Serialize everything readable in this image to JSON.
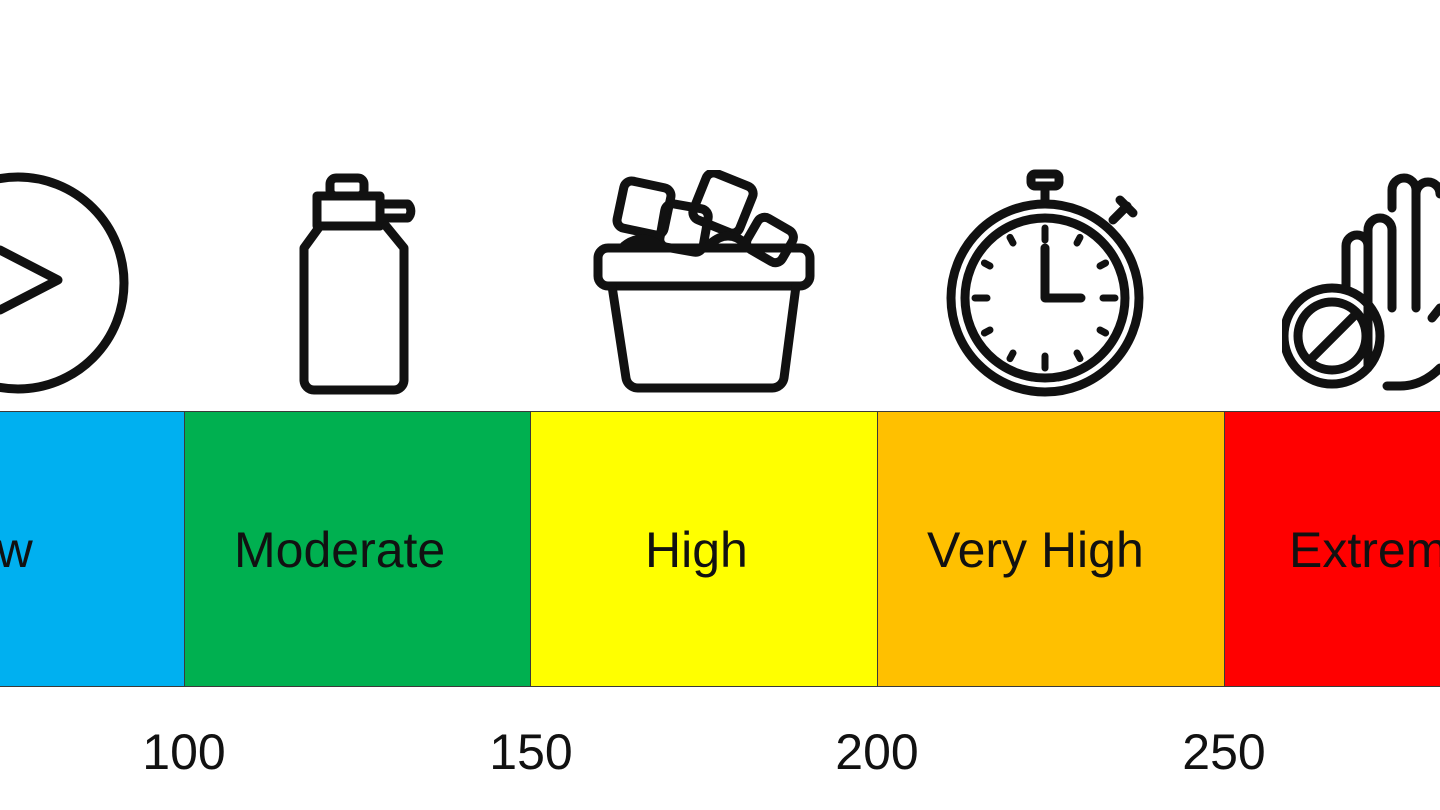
{
  "levels": [
    {
      "label": "Low",
      "color": "#00b0f0",
      "icon": "play-circle-icon"
    },
    {
      "label": "Moderate",
      "color": "#00b050",
      "icon": "water-bottle-icon"
    },
    {
      "label": "High",
      "color": "#ffff00",
      "icon": "ice-bucket-icon"
    },
    {
      "label": "Very High",
      "color": "#ffc000",
      "icon": "stopwatch-icon"
    },
    {
      "label": "Extreme",
      "color": "#ff0000",
      "icon": "stop-hand-icon"
    }
  ],
  "thresholds": [
    "100",
    "150",
    "200",
    "250"
  ]
}
